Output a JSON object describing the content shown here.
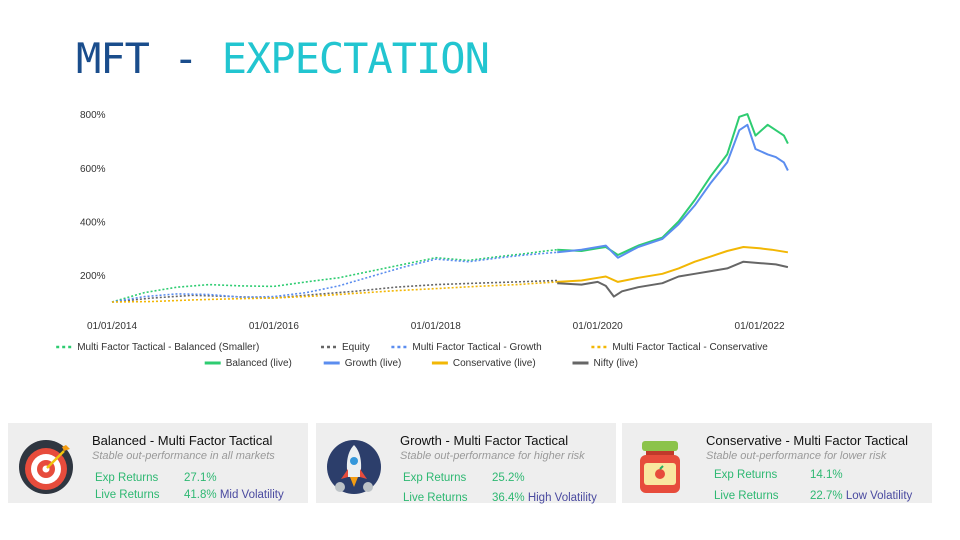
{
  "header": {
    "title_part1": "MFT - ",
    "title_part2": "EXPECTATION"
  },
  "chart_data": {
    "type": "line",
    "y_ticks": [
      "800%",
      "600%",
      "400%",
      "200%"
    ],
    "y_tick_values": [
      800,
      600,
      400,
      200
    ],
    "ylim": [
      100,
      860
    ],
    "x_ticks": [
      "01/01/2014",
      "01/01/2016",
      "01/01/2018",
      "01/01/2020",
      "01/01/2022"
    ],
    "x_tick_values": [
      2014.0,
      2016.0,
      2018.0,
      2020.0,
      2022.0
    ],
    "xlim": [
      2014.0,
      2022.45
    ],
    "grid": false,
    "legend_position": "bottom",
    "series": [
      {
        "name": "Multi Factor Tactical - Balanced (Smaller)",
        "color": "#2ecc71",
        "dashed": true,
        "x": [
          2014.0,
          2014.4,
          2014.8,
          2015.2,
          2015.6,
          2016.0,
          2016.4,
          2016.8,
          2017.2,
          2017.6,
          2018.0,
          2018.4,
          2018.8,
          2019.1,
          2019.35,
          2019.5
        ],
        "y": [
          100,
          135,
          155,
          165,
          160,
          158,
          175,
          190,
          215,
          240,
          265,
          255,
          270,
          280,
          290,
          295
        ]
      },
      {
        "name": "Equity",
        "color": "#666666",
        "dashed": true,
        "x": [
          2014.0,
          2014.5,
          2015.0,
          2015.5,
          2016.0,
          2016.5,
          2017.0,
          2017.5,
          2018.0,
          2018.5,
          2019.0,
          2019.5
        ],
        "y": [
          100,
          115,
          125,
          120,
          115,
          128,
          140,
          155,
          165,
          170,
          175,
          180
        ]
      },
      {
        "name": "Multi Factor Tactical - Growth",
        "color": "#5b8def",
        "dashed": true,
        "x": [
          2014.0,
          2014.4,
          2014.8,
          2015.2,
          2015.6,
          2016.0,
          2016.4,
          2016.8,
          2017.2,
          2017.6,
          2018.0,
          2018.4,
          2018.8,
          2019.1,
          2019.5
        ],
        "y": [
          100,
          120,
          130,
          128,
          118,
          120,
          135,
          160,
          195,
          230,
          260,
          250,
          265,
          275,
          285
        ]
      },
      {
        "name": "Multi Factor Tactical - Conservative",
        "color": "#f2b705",
        "dashed": true,
        "x": [
          2014.0,
          2014.5,
          2015.0,
          2015.5,
          2016.0,
          2016.5,
          2017.0,
          2017.5,
          2018.0,
          2018.5,
          2019.0,
          2019.5
        ],
        "y": [
          100,
          102,
          108,
          112,
          115,
          122,
          132,
          142,
          150,
          158,
          165,
          175
        ]
      },
      {
        "name": "Balanced (live)",
        "color": "#2ecc71",
        "dashed": false,
        "x": [
          2019.5,
          2019.8,
          2020.0,
          2020.1,
          2020.25,
          2020.5,
          2020.8,
          2021.0,
          2021.2,
          2021.4,
          2021.6,
          2021.75,
          2021.85,
          2021.95,
          2022.1,
          2022.2,
          2022.3,
          2022.35
        ],
        "y": [
          295,
          290,
          300,
          305,
          275,
          310,
          340,
          400,
          480,
          570,
          650,
          790,
          800,
          720,
          760,
          740,
          720,
          690
        ]
      },
      {
        "name": "Growth (live)",
        "color": "#5b8def",
        "dashed": false,
        "x": [
          2019.5,
          2019.8,
          2020.0,
          2020.1,
          2020.25,
          2020.5,
          2020.8,
          2021.0,
          2021.2,
          2021.4,
          2021.6,
          2021.75,
          2021.85,
          2021.95,
          2022.1,
          2022.2,
          2022.3,
          2022.35
        ],
        "y": [
          285,
          295,
          305,
          310,
          265,
          305,
          335,
          390,
          460,
          545,
          620,
          740,
          760,
          670,
          650,
          640,
          620,
          590
        ]
      },
      {
        "name": "Conservative (live)",
        "color": "#f2b705",
        "dashed": false,
        "x": [
          2019.5,
          2019.8,
          2020.0,
          2020.1,
          2020.25,
          2020.5,
          2020.8,
          2021.0,
          2021.2,
          2021.4,
          2021.6,
          2021.8,
          2022.0,
          2022.15,
          2022.35
        ],
        "y": [
          175,
          180,
          190,
          195,
          175,
          190,
          205,
          225,
          250,
          270,
          290,
          305,
          300,
          295,
          285
        ]
      },
      {
        "name": "Nifty (live)",
        "color": "#666666",
        "dashed": false,
        "x": [
          2019.5,
          2019.8,
          2020.0,
          2020.1,
          2020.2,
          2020.3,
          2020.5,
          2020.8,
          2021.0,
          2021.2,
          2021.4,
          2021.6,
          2021.8,
          2022.0,
          2022.2,
          2022.35
        ],
        "y": [
          170,
          165,
          175,
          160,
          120,
          140,
          155,
          170,
          195,
          205,
          215,
          225,
          250,
          245,
          240,
          230
        ]
      }
    ]
  },
  "cards": [
    {
      "title": "Balanced - Multi Factor Tactical",
      "subtitle": "Stable out-performance in all markets",
      "exp_label": "Exp Returns",
      "exp_value": "27.1%",
      "live_label": "Live Returns",
      "live_value": "41.8%",
      "volatility": "Mid Volatility",
      "icon": "target-icon"
    },
    {
      "title": "Growth - Multi Factor Tactical",
      "subtitle": "Stable out-performance for higher risk",
      "exp_label": "Exp Returns",
      "exp_value": "25.2%",
      "live_label": "Live Returns",
      "live_value": "36.4%",
      "volatility": "High Volatility",
      "icon": "rocket-icon"
    },
    {
      "title": "Conservative - Multi Factor Tactical",
      "subtitle": "Stable out-performance for lower risk",
      "exp_label": "Exp Returns",
      "exp_value": "14.1%",
      "live_label": "Live Returns",
      "live_value": "22.7%",
      "volatility": "Low Volatility",
      "icon": "jar-icon"
    }
  ]
}
